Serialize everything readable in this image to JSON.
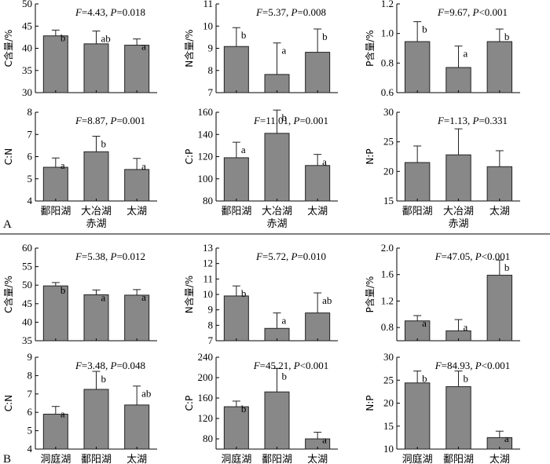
{
  "figure": {
    "panel_labels": [
      "A",
      "B"
    ]
  },
  "style": {
    "bar_fill": "#888888",
    "bar_stroke": "#222222",
    "axis_color": "#000000",
    "separator_color": "#000000"
  },
  "chart_data": [
    {
      "id": "A-C",
      "section": "A",
      "type": "bar",
      "categories": [
        "鄱阳湖",
        "大冶湖",
        "太湖"
      ],
      "values": [
        42.8,
        41.0,
        40.7
      ],
      "errors": [
        1.3,
        2.9,
        1.4
      ],
      "letters": [
        "b",
        "ab",
        "a"
      ],
      "ylabel": "C含量/%",
      "ylim": [
        30,
        50
      ],
      "yticks": [
        30,
        35,
        40,
        45,
        50
      ],
      "ytick_labels": [
        "30",
        "35",
        "40",
        "45",
        "50"
      ],
      "stat": {
        "F": "4.43",
        "P": "0.018",
        "P_op": "="
      },
      "show_xticklabels": false
    },
    {
      "id": "A-N",
      "section": "A",
      "type": "bar",
      "categories": [
        "鄱阳湖",
        "大冶湖",
        "太湖"
      ],
      "values": [
        9.08,
        7.82,
        8.82
      ],
      "errors": [
        0.85,
        1.42,
        1.05
      ],
      "letters": [
        "b",
        "a",
        "b"
      ],
      "ylabel": "N含量/%",
      "ylim": [
        7,
        11
      ],
      "yticks": [
        7,
        8,
        9,
        10,
        11
      ],
      "ytick_labels": [
        "7",
        "8",
        "9",
        "10",
        "11"
      ],
      "stat": {
        "F": "5.37",
        "P": "0.008",
        "P_op": "="
      },
      "show_xticklabels": false
    },
    {
      "id": "A-P",
      "section": "A",
      "type": "bar",
      "categories": [
        "鄱阳湖",
        "大冶湖",
        "太湖"
      ],
      "values": [
        0.945,
        0.77,
        0.945
      ],
      "errors": [
        0.135,
        0.145,
        0.085
      ],
      "letters": [
        "b",
        "a",
        "b"
      ],
      "ylabel": "P含量/%",
      "ylim": [
        0.6,
        1.2
      ],
      "yticks": [
        0.6,
        0.8,
        1.0,
        1.2
      ],
      "ytick_labels": [
        "0.6",
        "0.8",
        "1.0",
        "1.2"
      ],
      "stat": {
        "F": "9.67",
        "P": "0.001",
        "P_op": "<"
      },
      "show_xticklabels": false
    },
    {
      "id": "A-CN",
      "section": "A",
      "type": "bar",
      "categories": [
        "鄱阳湖",
        "大冶湖",
        "太湖"
      ],
      "categories_line2": [
        "",
        "赤湖",
        ""
      ],
      "values": [
        5.52,
        6.22,
        5.42
      ],
      "errors": [
        0.42,
        0.7,
        0.5
      ],
      "letters": [
        "a",
        "b",
        "a"
      ],
      "ylabel": "C:N",
      "ylim": [
        4,
        8
      ],
      "yticks": [
        4,
        5,
        6,
        7,
        8
      ],
      "ytick_labels": [
        "4",
        "5",
        "6",
        "7",
        "8"
      ],
      "stat": {
        "F": "8.87",
        "P": "0.001",
        "P_op": "="
      },
      "show_xticklabels": true
    },
    {
      "id": "A-CP",
      "section": "A",
      "type": "bar",
      "categories": [
        "鄱阳湖",
        "大冶湖",
        "太湖"
      ],
      "categories_line2": [
        "",
        "赤湖",
        ""
      ],
      "values": [
        119,
        141,
        112
      ],
      "errors": [
        14,
        21,
        10
      ],
      "letters": [
        "a",
        "b",
        "a"
      ],
      "ylabel": "C:P",
      "ylim": [
        80,
        160
      ],
      "yticks": [
        80,
        100,
        120,
        140,
        160
      ],
      "ytick_labels": [
        "80",
        "100",
        "120",
        "140",
        "160"
      ],
      "stat": {
        "F": "11.01",
        "P": "0.001",
        "P_op": "="
      },
      "show_xticklabels": true
    },
    {
      "id": "A-NP",
      "section": "A",
      "type": "bar",
      "categories": [
        "鄱阳湖",
        "大冶湖",
        "太湖"
      ],
      "categories_line2": [
        "",
        "赤湖",
        ""
      ],
      "values": [
        21.5,
        22.8,
        20.8
      ],
      "errors": [
        2.8,
        4.4,
        2.7
      ],
      "letters": [
        "",
        "",
        ""
      ],
      "ylabel": "N:P",
      "ylim": [
        15,
        30
      ],
      "yticks": [
        15,
        20,
        25,
        30
      ],
      "ytick_labels": [
        "15",
        "20",
        "25",
        "30"
      ],
      "stat": {
        "F": "1.13",
        "P": "0.331",
        "P_op": "="
      },
      "show_xticklabels": true
    },
    {
      "id": "B-C",
      "section": "B",
      "type": "bar",
      "categories": [
        "洞庭湖",
        "鄱阳湖",
        "太湖"
      ],
      "values": [
        49.8,
        47.4,
        47.3
      ],
      "errors": [
        0.9,
        1.3,
        1.5
      ],
      "letters": [
        "b",
        "a",
        "a"
      ],
      "ylabel": "C含量/%",
      "ylim": [
        35,
        60
      ],
      "yticks": [
        35,
        40,
        45,
        50,
        55,
        60
      ],
      "ytick_labels": [
        "35",
        "40",
        "45",
        "50",
        "55",
        "60"
      ],
      "stat": {
        "F": "5.38",
        "P": "0.012",
        "P_op": "="
      },
      "show_xticklabels": false
    },
    {
      "id": "B-N",
      "section": "B",
      "type": "bar",
      "categories": [
        "洞庭湖",
        "鄱阳湖",
        "太湖"
      ],
      "values": [
        9.9,
        7.8,
        8.8
      ],
      "errors": [
        0.65,
        1.0,
        1.3
      ],
      "letters": [
        "b",
        "a",
        "ab"
      ],
      "ylabel": "N含量/%",
      "ylim": [
        7,
        13
      ],
      "yticks": [
        7,
        8,
        9,
        10,
        11,
        12,
        13
      ],
      "ytick_labels": [
        "7",
        "8",
        "9",
        "10",
        "11",
        "12",
        "13"
      ],
      "stat": {
        "F": "5.72",
        "P": "0.010",
        "P_op": "="
      },
      "show_xticklabels": false
    },
    {
      "id": "B-P",
      "section": "B",
      "type": "bar",
      "categories": [
        "洞庭湖",
        "鄱阳湖",
        "太湖"
      ],
      "values": [
        0.9,
        0.75,
        1.59
      ],
      "errors": [
        0.08,
        0.17,
        0.23
      ],
      "letters": [
        "a",
        "a",
        "b"
      ],
      "ylabel": "P含量/%",
      "ylim": [
        0.6,
        2.0
      ],
      "yticks": [
        0.8,
        1.2,
        1.6,
        2.0
      ],
      "ytick_labels": [
        "0.8",
        "1.2",
        "1.6",
        "2.0"
      ],
      "stat": {
        "F": "47.05",
        "P": "0.001",
        "P_op": "<"
      },
      "show_xticklabels": false
    },
    {
      "id": "B-CN",
      "section": "B",
      "type": "bar",
      "categories": [
        "洞庭湖",
        "鄱阳湖",
        "太湖"
      ],
      "values": [
        5.9,
        7.25,
        6.4
      ],
      "errors": [
        0.42,
        0.98,
        1.03
      ],
      "letters": [
        "a",
        "b",
        "ab"
      ],
      "ylabel": "C:N",
      "ylim": [
        4,
        9
      ],
      "yticks": [
        4,
        5,
        6,
        7,
        8,
        9
      ],
      "ytick_labels": [
        "4",
        "5",
        "6",
        "7",
        "8",
        "9"
      ],
      "stat": {
        "F": "3.48",
        "P": "0.048",
        "P_op": "="
      },
      "show_xticklabels": true
    },
    {
      "id": "B-CP",
      "section": "B",
      "type": "bar",
      "categories": [
        "洞庭湖",
        "鄱阳湖",
        "太湖"
      ],
      "values": [
        143,
        172,
        80
      ],
      "errors": [
        11,
        46,
        13
      ],
      "letters": [
        "b",
        "b",
        "a"
      ],
      "ylabel": "C:P",
      "ylim": [
        60,
        240
      ],
      "yticks": [
        80,
        120,
        160,
        200,
        240
      ],
      "ytick_labels": [
        "80",
        "120",
        "160",
        "200",
        "240"
      ],
      "stat": {
        "F": "45.21",
        "P": "0.001",
        "P_op": "<"
      },
      "show_xticklabels": true
    },
    {
      "id": "B-NP",
      "section": "B",
      "type": "bar",
      "categories": [
        "洞庭湖",
        "鄱阳湖",
        "太湖"
      ],
      "values": [
        24.4,
        23.6,
        12.5
      ],
      "errors": [
        2.6,
        3.4,
        1.4
      ],
      "letters": [
        "b",
        "b",
        "a"
      ],
      "ylabel": "N:P",
      "ylim": [
        10,
        30
      ],
      "yticks": [
        10,
        15,
        20,
        25,
        30
      ],
      "ytick_labels": [
        "10",
        "15",
        "20",
        "25",
        "30"
      ],
      "stat": {
        "F": "84.93",
        "P": "0.001",
        "P_op": "<"
      },
      "show_xticklabels": true
    }
  ]
}
